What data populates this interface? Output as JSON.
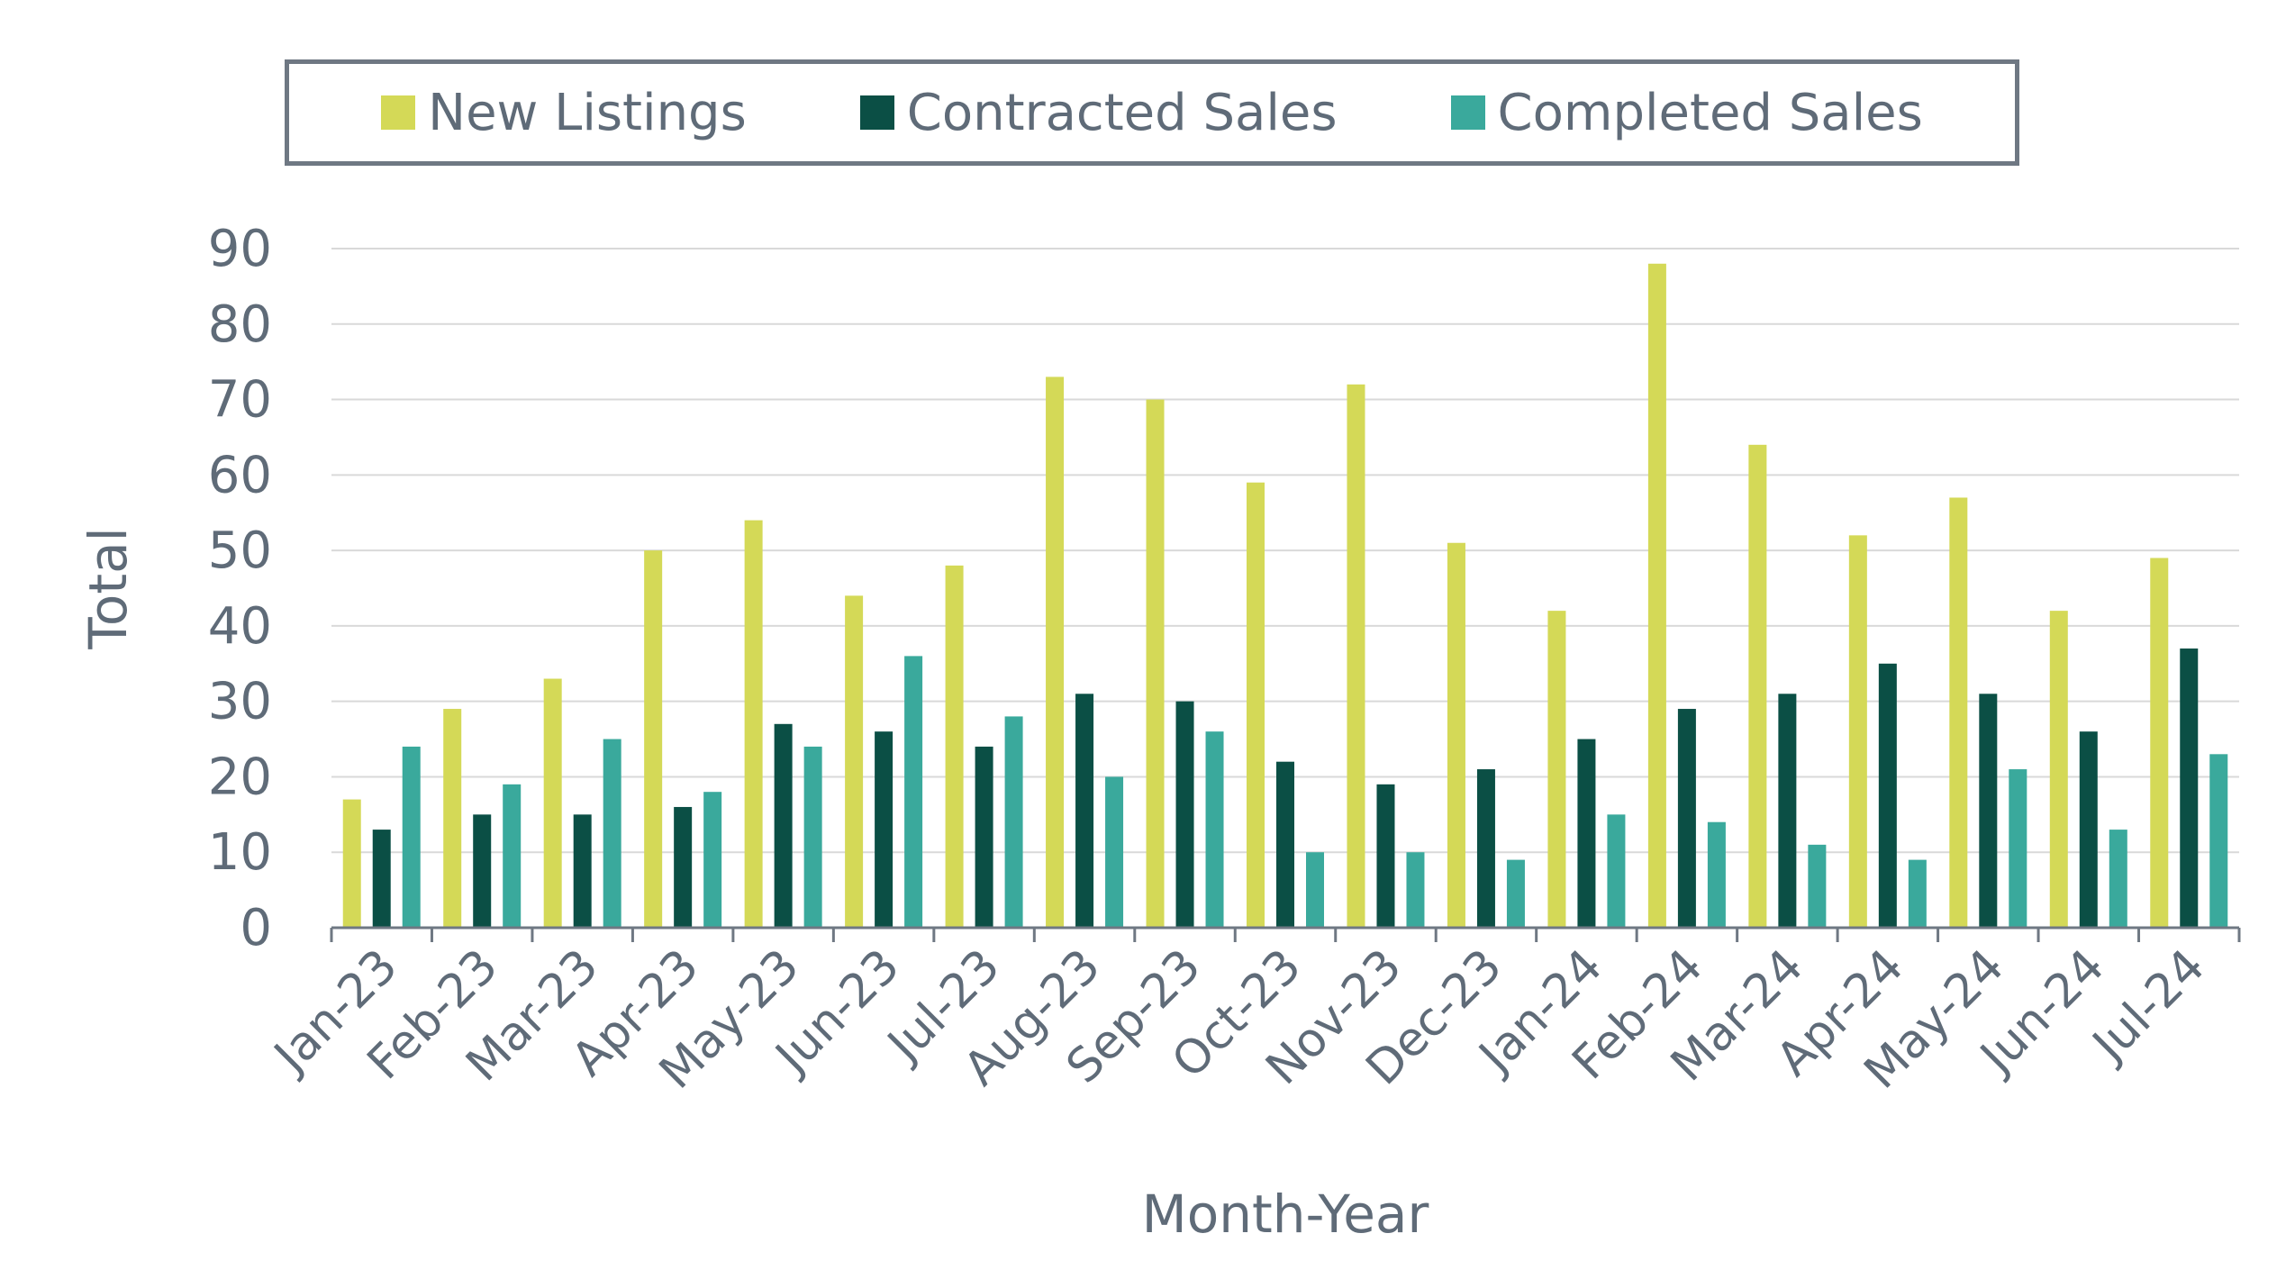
{
  "chart_data": {
    "type": "bar",
    "title": "",
    "xlabel": "Month-Year",
    "ylabel": "Total",
    "ylim": [
      0,
      90
    ],
    "yticks": [
      0,
      10,
      20,
      30,
      40,
      50,
      60,
      70,
      80,
      90
    ],
    "grid": true,
    "legend_position": "top",
    "categories": [
      "Jan-23",
      "Feb-23",
      "Mar-23",
      "Apr-23",
      "May-23",
      "Jun-23",
      "Jul-23",
      "Aug-23",
      "Sep-23",
      "Oct-23",
      "Nov-23",
      "Dec-23",
      "Jan-24",
      "Feb-24",
      "Mar-24",
      "Apr-24",
      "May-24",
      "Jun-24",
      "Jul-24"
    ],
    "series": [
      {
        "name": "New Listings",
        "color": "#d4d957",
        "values": [
          17,
          29,
          33,
          50,
          54,
          44,
          48,
          73,
          70,
          59,
          72,
          51,
          42,
          88,
          64,
          52,
          57,
          42,
          49
        ]
      },
      {
        "name": "Contracted Sales",
        "color": "#0b4f45",
        "values": [
          13,
          15,
          15,
          16,
          27,
          26,
          24,
          31,
          30,
          22,
          19,
          21,
          25,
          29,
          31,
          35,
          31,
          26,
          37
        ]
      },
      {
        "name": "Completed Sales",
        "color": "#3aa99c",
        "values": [
          24,
          19,
          25,
          18,
          24,
          36,
          28,
          20,
          26,
          10,
          10,
          9,
          15,
          14,
          11,
          9,
          21,
          13,
          23
        ]
      }
    ]
  }
}
